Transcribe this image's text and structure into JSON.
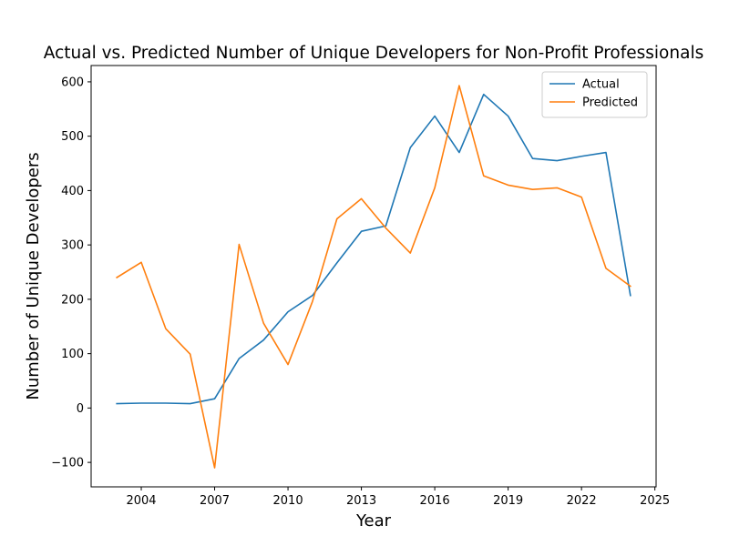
{
  "chart_data": {
    "type": "line",
    "title": "Actual vs. Predicted Number of Unique Developers for Non-Profit Professionals",
    "xlabel": "Year",
    "ylabel": "Number of Unique Developers",
    "xlim": [
      2001.95,
      2025.05
    ],
    "ylim": [
      -145,
      630
    ],
    "x_ticks": [
      2004,
      2007,
      2010,
      2013,
      2016,
      2019,
      2022,
      2025
    ],
    "y_ticks": [
      -100,
      0,
      100,
      200,
      300,
      400,
      500,
      600
    ],
    "x_tick_labels": [
      "2004",
      "2007",
      "2010",
      "2013",
      "2016",
      "2019",
      "2022",
      "2025"
    ],
    "y_tick_labels": [
      "−100",
      "0",
      "100",
      "200",
      "300",
      "400",
      "500",
      "600"
    ],
    "grid": false,
    "legend_position": "top-right",
    "x": [
      2003,
      2004,
      2005,
      2006,
      2007,
      2008,
      2009,
      2010,
      2011,
      2012,
      2013,
      2014,
      2015,
      2016,
      2017,
      2018,
      2019,
      2020,
      2021,
      2022,
      2023,
      2024
    ],
    "series": [
      {
        "name": "Actual",
        "color": "#1f77b4",
        "values": [
          8,
          9,
          9,
          8,
          17,
          91,
          125,
          177,
          207,
          267,
          325,
          335,
          479,
          537,
          470,
          577,
          537,
          459,
          455,
          463,
          470,
          207
        ]
      },
      {
        "name": "Predicted",
        "color": "#ff7f0e",
        "values": [
          240,
          268,
          146,
          99,
          -110,
          301,
          156,
          80,
          196,
          348,
          385,
          331,
          285,
          405,
          593,
          427,
          410,
          402,
          405,
          388,
          257,
          224
        ]
      }
    ]
  }
}
